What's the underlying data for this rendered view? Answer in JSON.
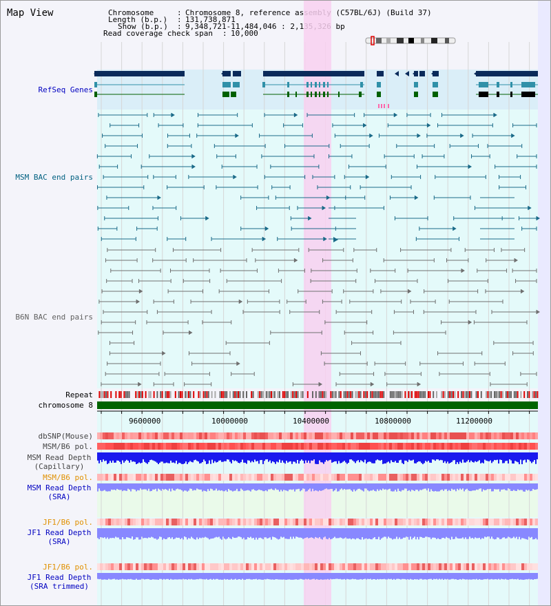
{
  "header": {
    "title": "Map View",
    "chromosome_key": "Chromosome",
    "chromosome_value": "Chromosome 8, reference assembly (C57BL/6J) (Build 37)",
    "length_key": "Length (b.p.)",
    "length_value": "131,738,871",
    "show_key": "Show (b.p.)",
    "show_value": "9,348,721-11,484,046 : 2,135,326 bp",
    "span_key": "Read coverage check span",
    "span_value": "10,000"
  },
  "tracks": {
    "refseq": "RefSeq Genes",
    "msm_bac": "MSM BAC end pairs",
    "b6n_bac": "B6N BAC end pairs",
    "repeat": "Repeat",
    "chromosome": "chromosome 8",
    "dbsnp": "dbSNP(Mouse)",
    "msm_pol": "MSM/B6 pol.",
    "msm_depth_cap_1": "MSM Read Depth",
    "msm_depth_cap_2": "(Capillary)",
    "msm_pol_sra": "MSM/B6 pol.",
    "msm_depth_sra_1": "MSM Read Depth",
    "msm_depth_sra_2": "(SRA)",
    "jf1_pol": "JF1/B6 pol.",
    "jf1_depth_1": "JF1 Read Depth",
    "jf1_depth_2": "(SRA)",
    "jf1_pol_2": "JF1/B6 pol.",
    "jf1_trim_1": "JF1 Read Depth",
    "jf1_trim_2": "(SRA trimmed)"
  },
  "axis": {
    "ticks": [
      "9600000",
      "10000000",
      "10400000",
      "10800000",
      "11200000"
    ],
    "range": [
      9348721,
      11484046
    ]
  },
  "colors": {
    "refseq_bg": "#daeef8",
    "track_bg": "#e4fafa",
    "highlight": "#f8d0f0",
    "gene_dark": "#0a2a5a",
    "gene_teal": "#3090a8",
    "gene_green": "#006000",
    "msm_bac": "#1a6a88",
    "b6n_bac": "#707070",
    "chromosome": "#006400",
    "depth_capillary": "#1a1aee",
    "depth_sra": "#8888ff",
    "label_blue": "#0000c0",
    "label_teal": "#006080",
    "label_orange": "#e09000"
  }
}
